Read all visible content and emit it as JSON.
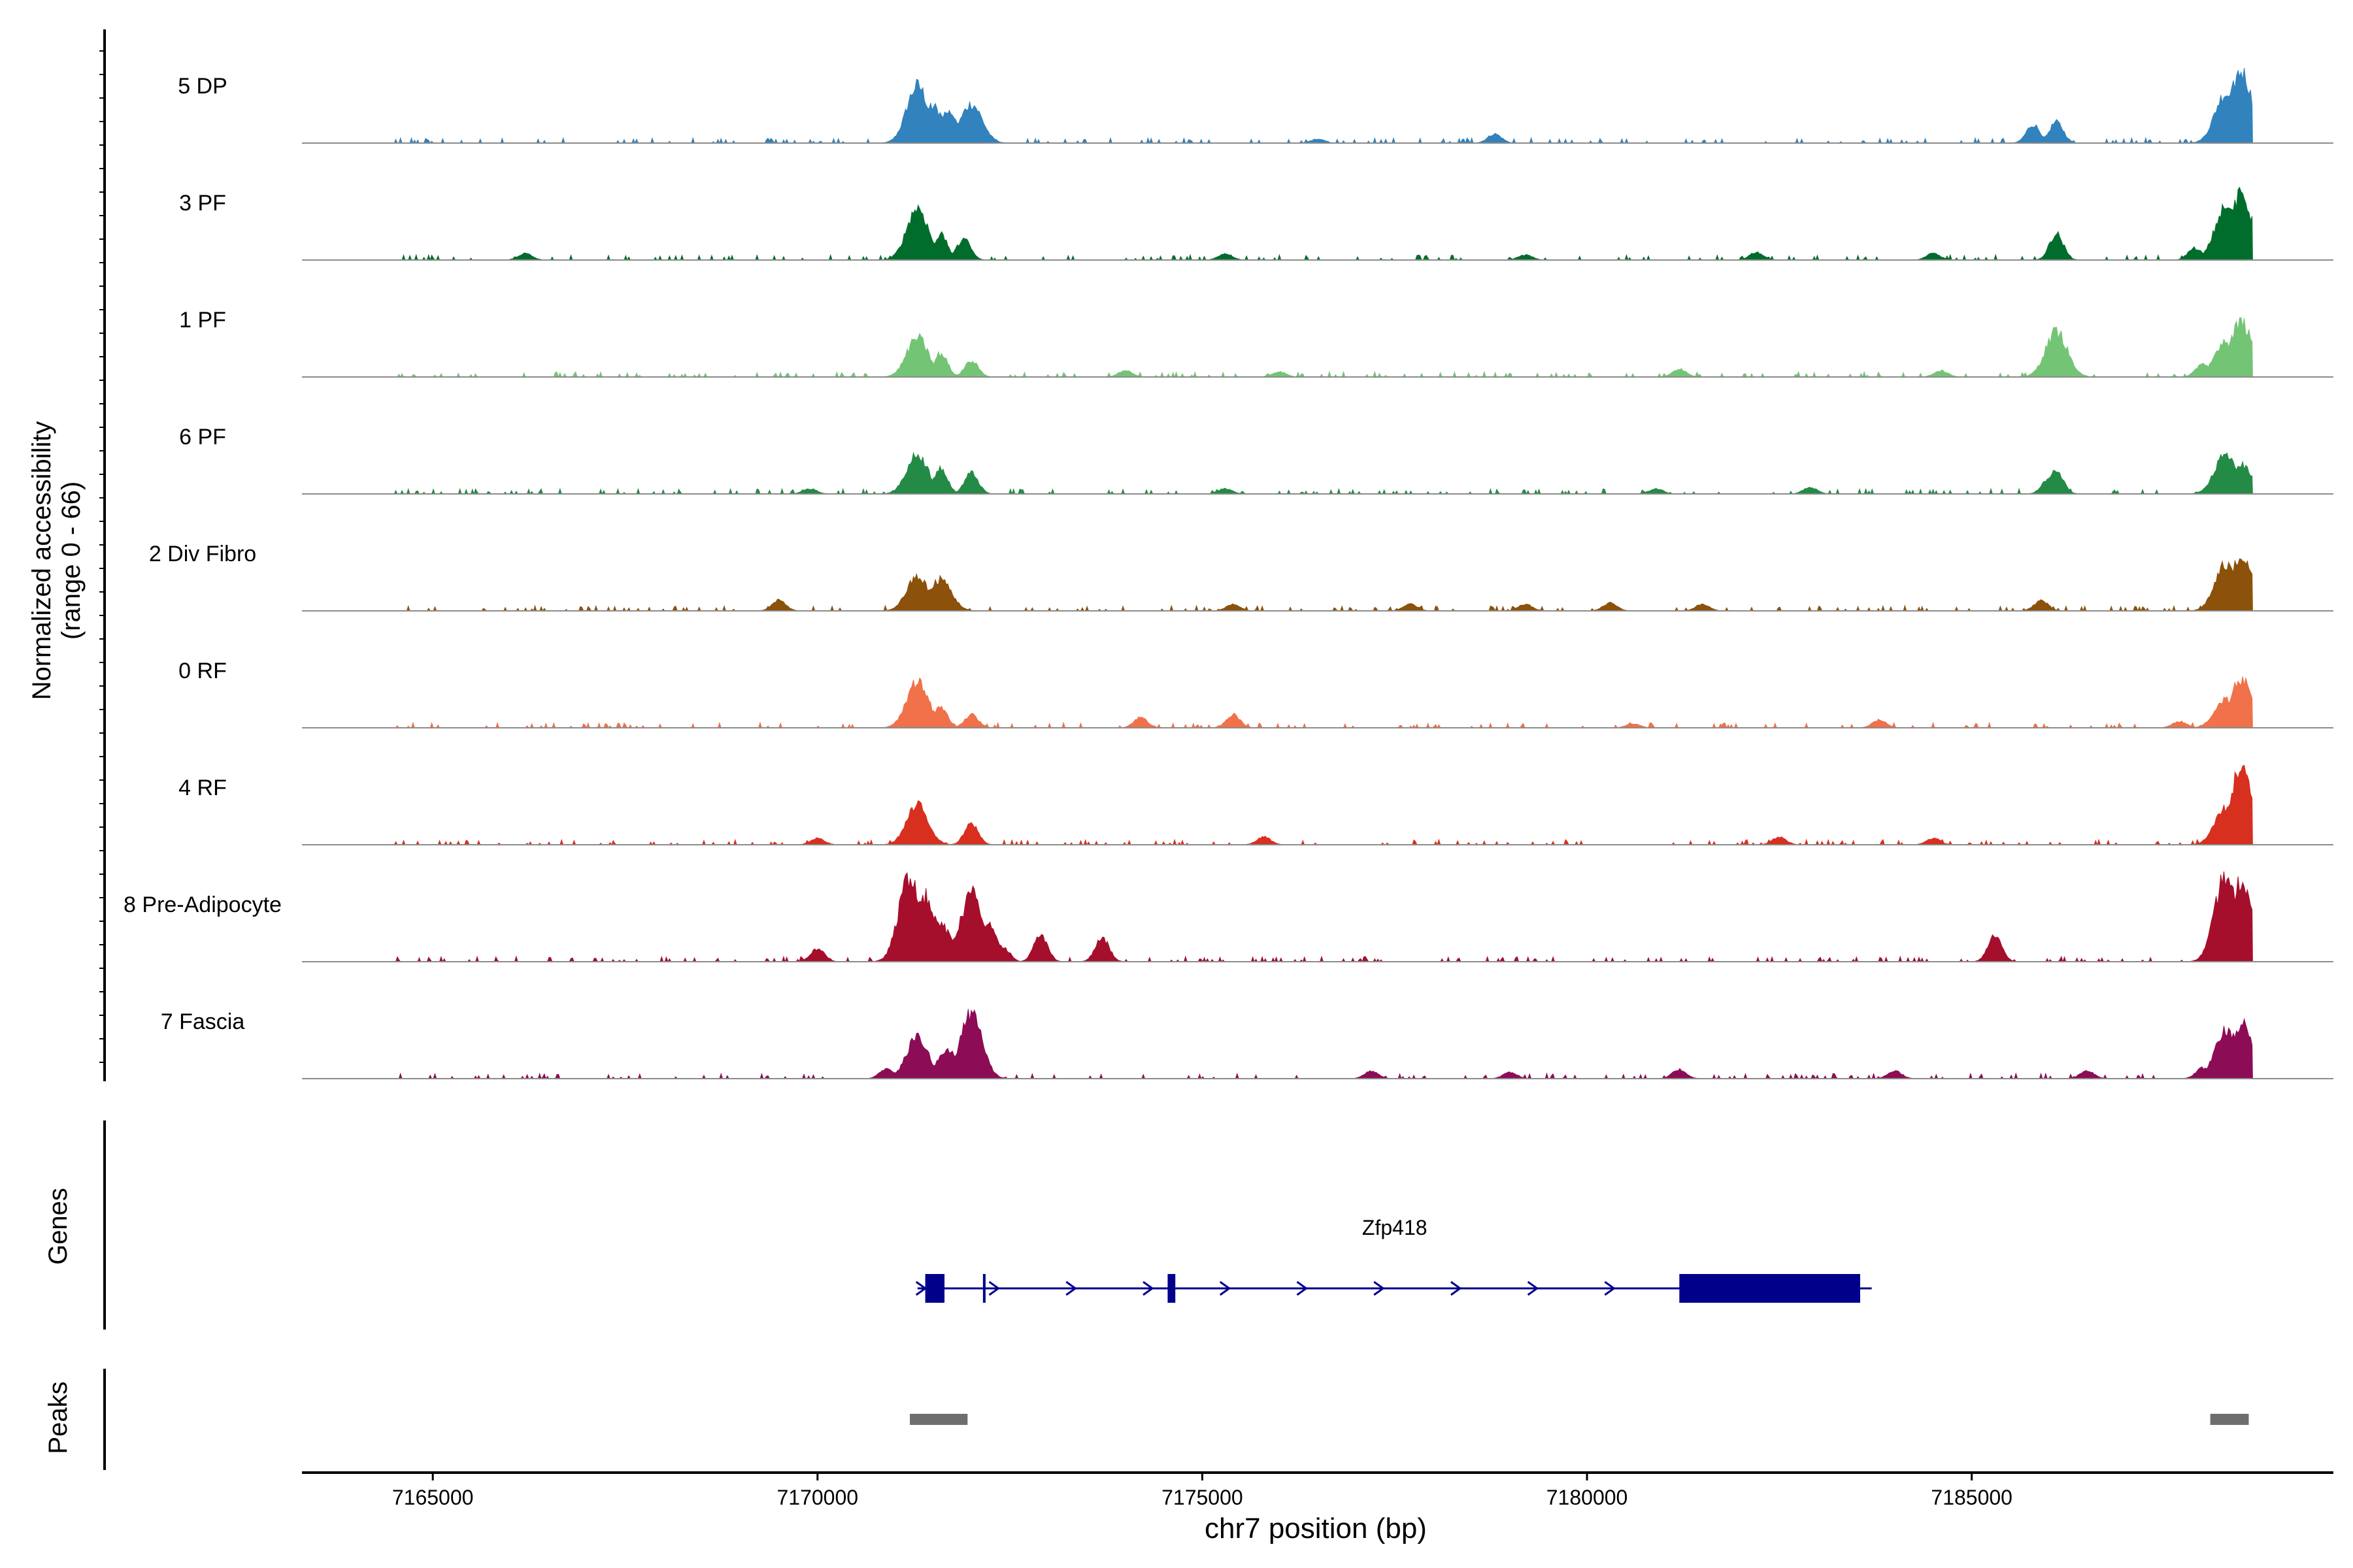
{
  "chart_data": {
    "type": "area",
    "title": "",
    "xlabel": "chr7 position (bp)",
    "ylabel": "Normalized accessibility",
    "ylabel_range": "(range 0 - 66)",
    "xlim": [
      7163300,
      7189700
    ],
    "x_ticks": [
      7165000,
      7170000,
      7175000,
      7180000,
      7185000
    ],
    "x_tick_labels": [
      "7165000",
      "7170000",
      "7175000",
      "7180000",
      "7185000"
    ],
    "track_ylim": [
      0,
      66
    ],
    "tracks": [
      {
        "name": "5 DP",
        "color": "#3182bd",
        "peaks": [
          [
            7171300,
            44
          ],
          [
            7171500,
            28
          ],
          [
            7171700,
            24
          ],
          [
            7172000,
            30
          ],
          [
            7176500,
            3
          ],
          [
            7178800,
            7
          ],
          [
            7185800,
            14
          ],
          [
            7186100,
            16
          ],
          [
            7188300,
            38
          ],
          [
            7188500,
            55
          ]
        ]
      },
      {
        "name": "3 PF",
        "color": "#006d2c",
        "peaks": [
          [
            7166200,
            5
          ],
          [
            7171300,
            40
          ],
          [
            7171600,
            20
          ],
          [
            7171900,
            16
          ],
          [
            7175300,
            5
          ],
          [
            7179200,
            4
          ],
          [
            7182200,
            6
          ],
          [
            7184500,
            5
          ],
          [
            7186100,
            20
          ],
          [
            7187900,
            9
          ],
          [
            7188300,
            40
          ],
          [
            7188500,
            50
          ]
        ]
      },
      {
        "name": "1 PF",
        "color": "#74c476",
        "peaks": [
          [
            7171300,
            30
          ],
          [
            7171600,
            18
          ],
          [
            7172000,
            12
          ],
          [
            7174000,
            5
          ],
          [
            7176000,
            4
          ],
          [
            7181200,
            6
          ],
          [
            7184600,
            5
          ],
          [
            7186100,
            35
          ],
          [
            7188000,
            10
          ],
          [
            7188300,
            28
          ],
          [
            7188500,
            42
          ]
        ]
      },
      {
        "name": "6 PF",
        "color": "#238b45",
        "peaks": [
          [
            7169900,
            4
          ],
          [
            7171300,
            30
          ],
          [
            7171600,
            20
          ],
          [
            7172000,
            16
          ],
          [
            7175300,
            4
          ],
          [
            7180900,
            4
          ],
          [
            7182900,
            5
          ],
          [
            7186000,
            11
          ],
          [
            7186100,
            18
          ],
          [
            7188300,
            30
          ],
          [
            7188500,
            22
          ]
        ]
      },
      {
        "name": "2 Div Fibro",
        "color": "#8c510a",
        "peaks": [
          [
            7169500,
            8
          ],
          [
            7171300,
            26
          ],
          [
            7171600,
            24
          ],
          [
            7175400,
            5
          ],
          [
            7177700,
            5
          ],
          [
            7179200,
            5
          ],
          [
            7180300,
            6
          ],
          [
            7181500,
            5
          ],
          [
            7185900,
            8
          ],
          [
            7188300,
            35
          ],
          [
            7188500,
            42
          ]
        ]
      },
      {
        "name": "0 RF",
        "color": "#f0714a",
        "peaks": [
          [
            7171300,
            36
          ],
          [
            7171600,
            16
          ],
          [
            7172000,
            10
          ],
          [
            7174200,
            8
          ],
          [
            7175400,
            10
          ],
          [
            7180600,
            3
          ],
          [
            7183800,
            6
          ],
          [
            7187700,
            5
          ],
          [
            7188300,
            22
          ],
          [
            7188500,
            38
          ]
        ]
      },
      {
        "name": "4 RF",
        "color": "#d7301f",
        "peaks": [
          [
            7170000,
            5
          ],
          [
            7171300,
            30
          ],
          [
            7172000,
            16
          ],
          [
            7175800,
            6
          ],
          [
            7182500,
            6
          ],
          [
            7184500,
            5
          ],
          [
            7188300,
            28
          ],
          [
            7188500,
            58
          ]
        ]
      },
      {
        "name": "8 Pre-Adipocyte",
        "color": "#a50f2c",
        "peaks": [
          [
            7170000,
            10
          ],
          [
            7171200,
            66
          ],
          [
            7171400,
            50
          ],
          [
            7171600,
            28
          ],
          [
            7171800,
            18
          ],
          [
            7172000,
            52
          ],
          [
            7172200,
            28
          ],
          [
            7172400,
            12
          ],
          [
            7172900,
            20
          ],
          [
            7173700,
            18
          ],
          [
            7185300,
            20
          ],
          [
            7188100,
            10
          ],
          [
            7188300,
            66
          ],
          [
            7188500,
            62
          ]
        ]
      },
      {
        "name": "7 Fascia",
        "color": "#8c0d56",
        "peaks": [
          [
            7170900,
            8
          ],
          [
            7171300,
            32
          ],
          [
            7171700,
            22
          ],
          [
            7172000,
            50
          ],
          [
            7177200,
            6
          ],
          [
            7179000,
            5
          ],
          [
            7181200,
            7
          ],
          [
            7184000,
            6
          ],
          [
            7186500,
            6
          ],
          [
            7188000,
            8
          ],
          [
            7188300,
            38
          ],
          [
            7188500,
            42
          ]
        ]
      }
    ],
    "genes_label": "Genes",
    "gene": {
      "name": "Zfp418",
      "color": "#00008b",
      "start": 7171300,
      "end": 7183700,
      "exons": [
        [
          7171400,
          7171650
        ],
        [
          7172150,
          7172180
        ],
        [
          7174550,
          7174650
        ],
        [
          7181200,
          7183550
        ]
      ],
      "arrows": [
        7171350,
        7172300,
        7173300,
        7174300,
        7175300,
        7176300,
        7177300,
        7178300,
        7179300,
        7180300
      ]
    },
    "peaks_label": "Peaks",
    "peak_regions": {
      "color": "#6e6e6e",
      "regions": [
        [
          7171200,
          7171950
        ],
        [
          7188100,
          7188600
        ]
      ]
    }
  }
}
